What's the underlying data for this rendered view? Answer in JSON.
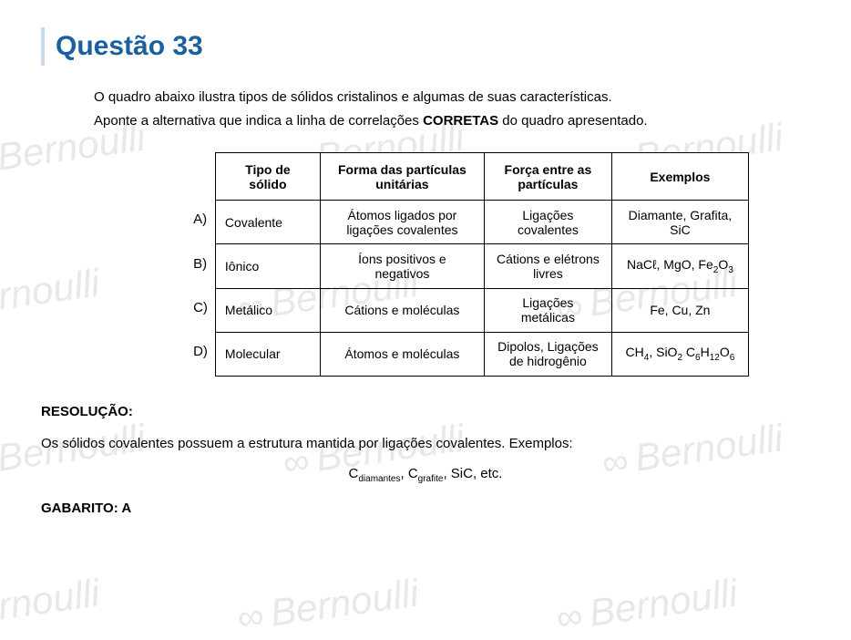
{
  "watermark_text": "Bernoulli",
  "title": "Questão 33",
  "question_line1": "O quadro abaixo ilustra tipos de sólidos cristalinos e algumas de suas características.",
  "question_line2a": "Aponte a alternativa que indica a linha de correlações ",
  "question_line2b": "CORRETAS",
  "question_line2c": " do quadro apresentado.",
  "headers": {
    "h0": "Tipo de sólido",
    "h1": "Forma das partículas unitárias",
    "h2": "Força entre as partículas",
    "h3": "Exemplos"
  },
  "labels": [
    "A)",
    "B)",
    "C)",
    "D)"
  ],
  "rows": [
    {
      "c0": "Covalente",
      "c1": "Átomos ligados por ligações covalentes",
      "c2": "Ligações covalentes",
      "c3": "Diamante, Grafita, SiC"
    },
    {
      "c0": "Iônico",
      "c1": "Íons positivos e negativos",
      "c2": "Cátions e elétrons livres",
      "c3_html": "NaCℓ, MgO, Fe<span class='sub'>2</span>O<span class='sub'>3</span>"
    },
    {
      "c0": "Metálico",
      "c1": "Cátions e moléculas",
      "c2": "Ligações metálicas",
      "c3": "Fe, Cu, Zn"
    },
    {
      "c0": "Molecular",
      "c1": "Átomos e moléculas",
      "c2": "Dipolos, Ligações de hidrogênio",
      "c3_html": "CH<span class='sub'>4</span>, SiO<span class='sub'>2</span> C<span class='sub'>6</span>H<span class='sub'>12</span>O<span class='sub'>6</span>"
    }
  ],
  "resolucao_title": "RESOLUÇÃO:",
  "resolucao_text": "Os sólidos covalentes possuem a estrutura mantida por ligações covalentes. Exemplos:",
  "formula_html": "C<span class='sub'>diamantes</span>, C<span class='sub'>grafite</span>, SiC, etc.",
  "gabarito": "GABARITO: A",
  "colors": {
    "title": "#1a5f9e",
    "title_border": "#c9d9e8",
    "watermark": "#e8e8e8",
    "text": "#000000",
    "background": "#ffffff",
    "table_border": "#000000"
  },
  "fontsizes": {
    "title": 30,
    "body": 15,
    "table": 14,
    "watermark": 42
  }
}
